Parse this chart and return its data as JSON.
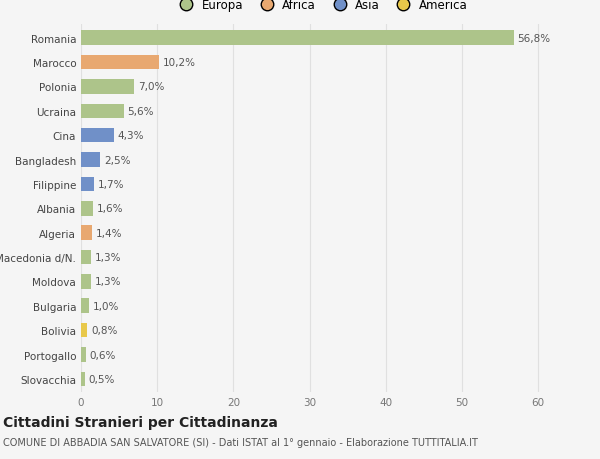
{
  "categories": [
    "Slovacchia",
    "Portogallo",
    "Bolivia",
    "Bulgaria",
    "Moldova",
    "Macedonia d/N.",
    "Algeria",
    "Albania",
    "Filippine",
    "Bangladesh",
    "Cina",
    "Ucraina",
    "Polonia",
    "Marocco",
    "Romania"
  ],
  "values": [
    0.5,
    0.6,
    0.8,
    1.0,
    1.3,
    1.3,
    1.4,
    1.6,
    1.7,
    2.5,
    4.3,
    5.6,
    7.0,
    10.2,
    56.8
  ],
  "labels": [
    "0,5%",
    "0,6%",
    "0,8%",
    "1,0%",
    "1,3%",
    "1,3%",
    "1,4%",
    "1,6%",
    "1,7%",
    "2,5%",
    "4,3%",
    "5,6%",
    "7,0%",
    "10,2%",
    "56,8%"
  ],
  "colors": [
    "#adc48a",
    "#adc48a",
    "#e8c84a",
    "#adc48a",
    "#adc48a",
    "#adc48a",
    "#e8a870",
    "#adc48a",
    "#7090c8",
    "#7090c8",
    "#7090c8",
    "#adc48a",
    "#adc48a",
    "#e8a870",
    "#adc48a"
  ],
  "legend": [
    {
      "label": "Europa",
      "color": "#adc48a"
    },
    {
      "label": "Africa",
      "color": "#e8a870"
    },
    {
      "label": "Asia",
      "color": "#7090c8"
    },
    {
      "label": "America",
      "color": "#e8c84a"
    }
  ],
  "title": "Cittadini Stranieri per Cittadinanza",
  "subtitle": "COMUNE DI ABBADIA SAN SALVATORE (SI) - Dati ISTAT al 1° gennaio - Elaborazione TUTTITALIA.IT",
  "xlim": [
    0,
    63
  ],
  "xticks": [
    0,
    10,
    20,
    30,
    40,
    50,
    60
  ],
  "background_color": "#f5f5f5",
  "grid_color": "#e0e0e0",
  "bar_height": 0.6,
  "title_fontsize": 10,
  "subtitle_fontsize": 7,
  "label_fontsize": 7.5,
  "ytick_fontsize": 7.5,
  "xtick_fontsize": 7.5,
  "legend_fontsize": 8.5
}
